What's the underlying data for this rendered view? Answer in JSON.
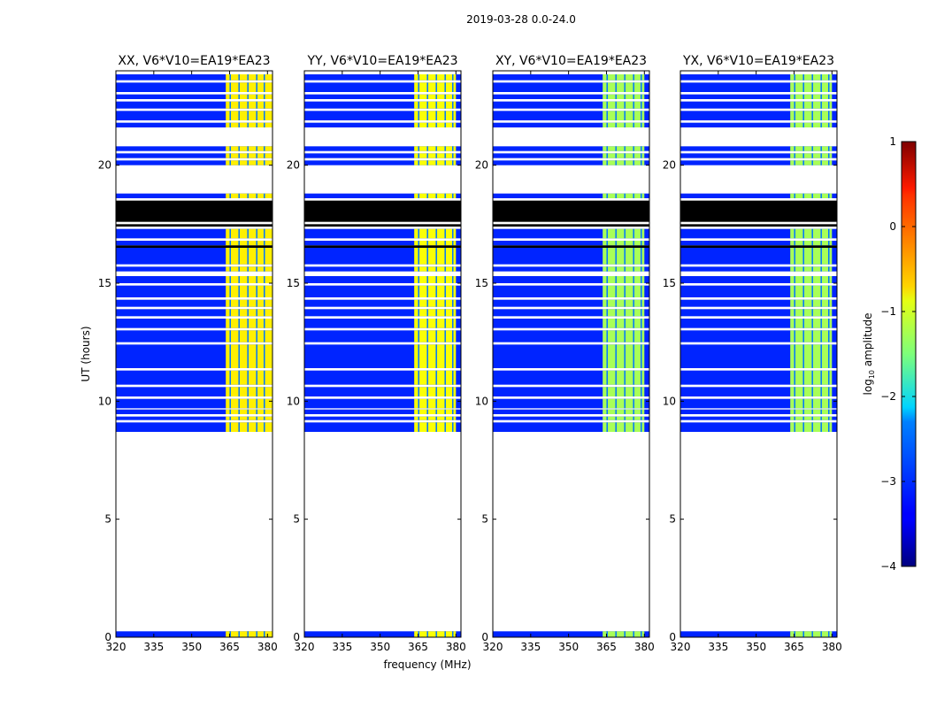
{
  "chart_data": {
    "type": "heatmap",
    "title": "2019-03-28 0.0-24.0",
    "xlabel": "frequency (MHz)",
    "ylabel": "UT (hours)",
    "colorbar_label": "log10 amplitude",
    "colorbar_label_base": "log",
    "colorbar_label_sub": "10",
    "colorbar_label_rest": " amplitude",
    "colormap": "jet",
    "clim": [
      -4,
      1
    ],
    "colorbar_ticks": [
      1,
      0,
      -1,
      -2,
      -3,
      -4
    ],
    "colorbar_tick_labels": [
      "1",
      "0",
      "−1",
      "−2",
      "−3",
      "−4"
    ],
    "xlim": [
      320,
      382
    ],
    "ylim": [
      0,
      24
    ],
    "xticks": [
      320,
      335,
      350,
      365,
      380
    ],
    "yticks": [
      0,
      5,
      10,
      15,
      20
    ],
    "panels": [
      {
        "title": "XX, V6*V10=EA19*EA23",
        "bright_band": [
          363.5,
          382
        ],
        "band_level": -0.8
      },
      {
        "title": "YY, V6*V10=EA19*EA23",
        "bright_band": [
          363.5,
          380
        ],
        "band_level": -0.9
      },
      {
        "title": "XY, V6*V10=EA19*EA23",
        "bright_band": [
          363.5,
          380
        ],
        "band_level": -1.3
      },
      {
        "title": "YX, V6*V10=EA19*EA23",
        "bright_band": [
          363.5,
          380
        ],
        "band_level": -1.3
      }
    ],
    "background_level": -3.2,
    "data_rows": [
      {
        "t0": 0.0,
        "t1": 0.25
      },
      {
        "t0": 8.7,
        "t1": 9.1
      },
      {
        "t0": 9.2,
        "t1": 9.35
      },
      {
        "t0": 9.45,
        "t1": 9.65
      },
      {
        "t0": 9.7,
        "t1": 10.1
      },
      {
        "t0": 10.2,
        "t1": 10.6
      },
      {
        "t0": 10.7,
        "t1": 11.3
      },
      {
        "t0": 11.4,
        "t1": 12.4
      },
      {
        "t0": 12.5,
        "t1": 13.0
      },
      {
        "t0": 13.1,
        "t1": 13.5
      },
      {
        "t0": 13.6,
        "t1": 13.9
      },
      {
        "t0": 14.0,
        "t1": 14.3
      },
      {
        "t0": 14.4,
        "t1": 14.9
      },
      {
        "t0": 15.0,
        "t1": 15.3
      },
      {
        "t0": 15.5,
        "t1": 15.7
      },
      {
        "t0": 15.8,
        "t1": 16.5
      },
      {
        "t0": 16.6,
        "t1": 16.8
      },
      {
        "t0": 16.9,
        "t1": 17.3
      },
      {
        "t0": 18.6,
        "t1": 18.8
      },
      {
        "t0": 20.0,
        "t1": 20.2
      },
      {
        "t0": 20.3,
        "t1": 20.5
      },
      {
        "t0": 20.6,
        "t1": 20.8
      },
      {
        "t0": 21.6,
        "t1": 21.8
      },
      {
        "t0": 21.9,
        "t1": 22.3
      },
      {
        "t0": 22.4,
        "t1": 22.7
      },
      {
        "t0": 22.8,
        "t1": 23.0
      },
      {
        "t0": 23.1,
        "t1": 23.5
      },
      {
        "t0": 23.6,
        "t1": 23.85
      }
    ],
    "flagged_rows": [
      {
        "t0": 16.5,
        "t1": 16.6
      },
      {
        "t0": 17.4,
        "t1": 17.5
      },
      {
        "t0": 17.6,
        "t1": 18.5
      }
    ],
    "rfi_channels": [
      365,
      368.5,
      372,
      375.5,
      378.5
    ]
  }
}
